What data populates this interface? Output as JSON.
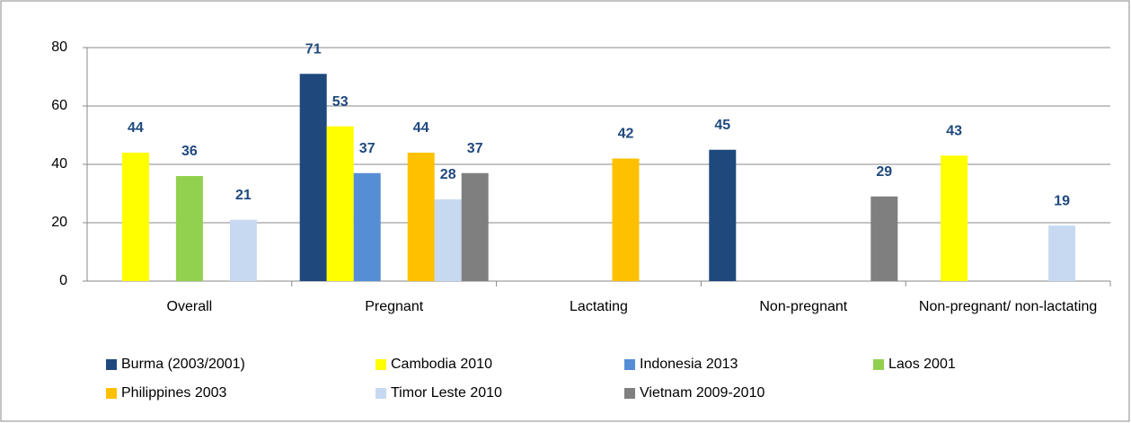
{
  "chart_data": {
    "type": "bar",
    "categories": [
      "Overall",
      "Pregnant",
      "Lactating",
      "Non-pregnant",
      "Non-pregnant/ non-lactating"
    ],
    "series": [
      {
        "name": "Burma (2003/2001)",
        "color": "#1f497d",
        "values": [
          null,
          71,
          null,
          45,
          null
        ]
      },
      {
        "name": "Cambodia 2010",
        "color": "#ffff00",
        "values": [
          44,
          53,
          null,
          null,
          43
        ]
      },
      {
        "name": "Indonesia 2013",
        "color": "#558ed5",
        "values": [
          null,
          37,
          null,
          null,
          null
        ]
      },
      {
        "name": "Laos 2001",
        "color": "#92d050",
        "values": [
          36,
          null,
          null,
          null,
          null
        ]
      },
      {
        "name": "Philippines 2003",
        "color": "#ffc000",
        "values": [
          null,
          44,
          42,
          null,
          null
        ]
      },
      {
        "name": "Timor Leste 2010",
        "color": "#c6d9f1",
        "values": [
          21,
          28,
          null,
          null,
          19
        ]
      },
      {
        "name": "Vietnam 2009-2010",
        "color": "#7f7f7f",
        "values": [
          null,
          37,
          null,
          29,
          null
        ]
      }
    ],
    "ylim": [
      0,
      80
    ],
    "yticks": [
      0,
      20,
      40,
      60,
      80
    ],
    "grid": true
  }
}
